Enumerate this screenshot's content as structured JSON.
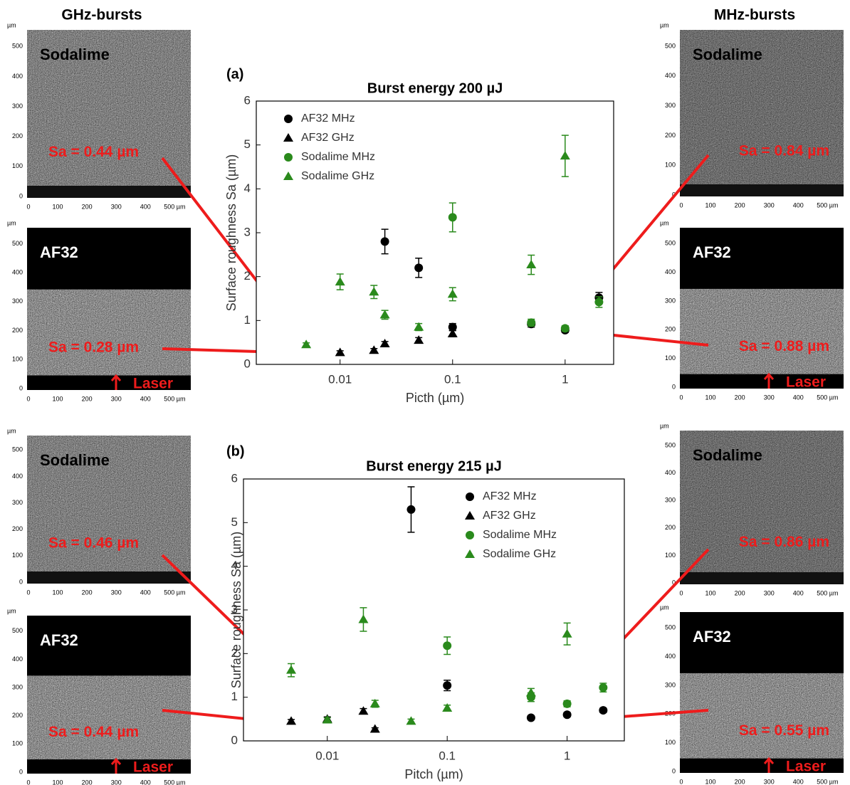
{
  "figure": {
    "left_heading": "GHz-bursts",
    "right_heading": "MHz-bursts",
    "unit": "µm",
    "image_xticks": [
      "0",
      "100",
      "200",
      "300",
      "400",
      "500 µm"
    ],
    "image_yticks": [
      "0",
      "100",
      "200",
      "300",
      "400",
      "500"
    ],
    "panels": [
      {
        "material": "Sodalime",
        "roughness": "Sa = 0.44 µm"
      },
      {
        "material": "AF32",
        "roughness": "Sa = 0.28 µm",
        "marker": "Laser"
      },
      {
        "material": "Sodalime",
        "roughness": "Sa = 0.84 µm"
      },
      {
        "material": "AF32",
        "roughness": "Sa = 0.88 µm",
        "marker": "Laser"
      },
      {
        "material": "Sodalime",
        "roughness": "Sa = 0.46 µm"
      },
      {
        "material": "AF32",
        "roughness": "Sa = 0.44 µm",
        "marker": "Laser"
      },
      {
        "material": "Sodalime",
        "roughness": "Sa = 0.86 µm"
      },
      {
        "material": "AF32",
        "roughness": "Sa = 0.55 µm",
        "marker": "Laser"
      }
    ]
  },
  "chart_data": [
    {
      "type": "scatter",
      "label": "(a)",
      "title": "Burst energy 200 µJ",
      "x_label": "Picth (µm)",
      "y_label": "Surface roughness Sa (µm)",
      "xscale": "log",
      "xlim": [
        0.0018,
        2.7
      ],
      "xticks": [
        0.01,
        0.1,
        1
      ],
      "ylim": [
        0,
        6
      ],
      "yticks": [
        0,
        1,
        2,
        3,
        4,
        5,
        6
      ],
      "grid": false,
      "legend": "top-left",
      "series": [
        {
          "name": "AF32 MHz",
          "color": "#000000",
          "marker": "circle",
          "x": [
            0.025,
            0.05,
            0.1,
            0.5,
            1,
            2
          ],
          "values": [
            2.8,
            2.2,
            0.85,
            0.92,
            0.78,
            1.52
          ],
          "errors": [
            0.28,
            0.22,
            0.08,
            0.07,
            0.05,
            0.12
          ]
        },
        {
          "name": "AF32 GHz",
          "color": "#000000",
          "marker": "triangle",
          "x": [
            0.01,
            0.02,
            0.025,
            0.05,
            0.1
          ],
          "values": [
            0.27,
            0.32,
            0.47,
            0.55,
            0.7
          ],
          "errors": [
            0.04,
            0.04,
            0.05,
            0.06,
            0.07
          ]
        },
        {
          "name": "Sodalime MHz",
          "color": "#2a8a1c",
          "marker": "circle",
          "x": [
            0.1,
            0.5,
            1,
            2
          ],
          "values": [
            3.35,
            0.95,
            0.82,
            1.42
          ],
          "errors": [
            0.33,
            0.08,
            0.06,
            0.12
          ]
        },
        {
          "name": "Sodalime GHz",
          "color": "#2a8a1c",
          "marker": "triangle",
          "x": [
            0.005,
            0.01,
            0.02,
            0.025,
            0.05,
            0.1,
            0.5,
            1
          ],
          "values": [
            0.45,
            1.88,
            1.65,
            1.13,
            0.85,
            1.6,
            2.27,
            4.75
          ],
          "errors": [
            0.04,
            0.18,
            0.15,
            0.1,
            0.08,
            0.15,
            0.22,
            0.47
          ]
        }
      ]
    },
    {
      "type": "scatter",
      "label": "(b)",
      "title": "Burst energy 215 µJ",
      "x_label": "Pitch (µm)",
      "y_label": "Surface roughness Sa (µm)",
      "xscale": "log",
      "xlim": [
        0.002,
        3
      ],
      "xticks": [
        0.01,
        0.1,
        1
      ],
      "ylim": [
        0,
        6
      ],
      "yticks": [
        0,
        1,
        2,
        3,
        4,
        5,
        6
      ],
      "grid": false,
      "legend": "top-right",
      "series": [
        {
          "name": "AF32 MHz",
          "color": "#000000",
          "marker": "circle",
          "x": [
            0.05,
            0.1,
            0.5,
            1,
            2
          ],
          "values": [
            5.3,
            1.27,
            0.53,
            0.6,
            0.7
          ],
          "errors": [
            0.52,
            0.12,
            0.04,
            0.05,
            0.05
          ]
        },
        {
          "name": "AF32 GHz",
          "color": "#000000",
          "marker": "triangle",
          "x": [
            0.005,
            0.01,
            0.02,
            0.025
          ],
          "values": [
            0.45,
            0.5,
            0.68,
            0.27
          ],
          "errors": [
            0.04,
            0.05,
            0.06,
            0.03
          ]
        },
        {
          "name": "Sodalime MHz",
          "color": "#2a8a1c",
          "marker": "circle",
          "x": [
            0.1,
            0.5,
            1,
            2
          ],
          "values": [
            2.18,
            1.0,
            0.85,
            1.22
          ],
          "errors": [
            0.2,
            0.1,
            0.07,
            0.1
          ]
        },
        {
          "name": "Sodalime GHz",
          "color": "#2a8a1c",
          "marker": "triangle",
          "x": [
            0.005,
            0.01,
            0.02,
            0.025,
            0.05,
            0.1,
            0.5,
            1
          ],
          "values": [
            1.62,
            0.48,
            2.78,
            0.85,
            0.45,
            0.75,
            1.1,
            2.45
          ],
          "errors": [
            0.15,
            0.05,
            0.27,
            0.08,
            0.05,
            0.07,
            0.1,
            0.25
          ]
        }
      ]
    }
  ]
}
